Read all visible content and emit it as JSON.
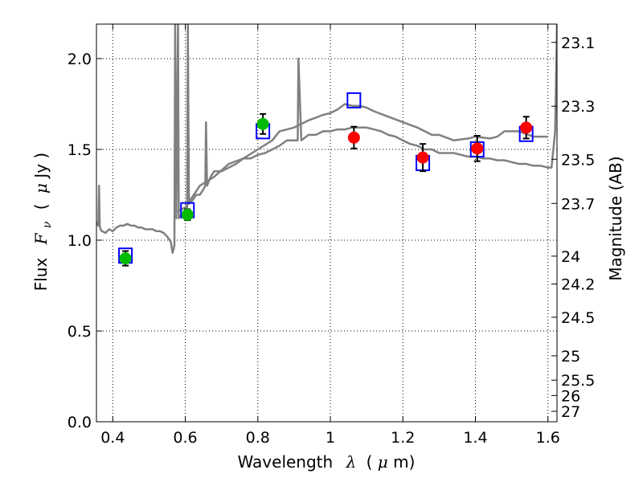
{
  "chart_data": {
    "type": "scatter",
    "xlabel": "Wavelength",
    "xlabel_symbol": "λ",
    "xlabel_unit_open": "(",
    "xlabel_unit_mu": "μ",
    "xlabel_unit_rest": "m)",
    "ylabel": "Flux",
    "ylabel_symbol": "F",
    "ylabel_subscript": "ν",
    "ylabel_unit_open": "(",
    "ylabel_unit_mu": "μ",
    "ylabel_unit_rest": "Jy )",
    "y2label": "Magnitude (AB)",
    "xlim": [
      0.355,
      1.625
    ],
    "ylim": [
      0.0,
      2.19
    ],
    "grid": true,
    "x_ticks": [
      0.4,
      0.6,
      0.8,
      1.0,
      1.2,
      1.4,
      1.6
    ],
    "x_tick_labels": [
      "0.4",
      "0.6",
      "0.8",
      "1",
      "1.2",
      "1.4",
      "1.6"
    ],
    "y_ticks": [
      0.0,
      0.5,
      1.0,
      1.5,
      2.0
    ],
    "y_tick_labels": [
      "0.0",
      "0.5",
      "1.0",
      "1.5",
      "2.0"
    ],
    "mag_ticks": [
      23.1,
      23.3,
      23.5,
      23.7,
      24,
      24.2,
      24.5,
      25,
      25.5,
      26,
      27
    ],
    "mag_tick_labels": [
      "23.1",
      "23.3",
      "23.5",
      "23.7",
      "24",
      "24.2",
      "24.5",
      "25",
      "25.5",
      "26",
      "27"
    ],
    "colors": {
      "spectrum": "#808080",
      "model": "#0000ff",
      "optical": "#00bb00",
      "nir": "#ff0000",
      "errorbar": "#000000"
    },
    "series": [
      {
        "name": "model spectrum",
        "kind": "line",
        "x": [
          0.355,
          0.36,
          0.362,
          0.364,
          0.366,
          0.37,
          0.38,
          0.39,
          0.4,
          0.41,
          0.42,
          0.43,
          0.44,
          0.45,
          0.46,
          0.47,
          0.48,
          0.49,
          0.5,
          0.51,
          0.52,
          0.53,
          0.54,
          0.55,
          0.56,
          0.565,
          0.57,
          0.572,
          0.575,
          0.58,
          0.582,
          0.584,
          0.59,
          0.6,
          0.605,
          0.607,
          0.61,
          0.62,
          0.63,
          0.64,
          0.65,
          0.655,
          0.657,
          0.66,
          0.67,
          0.68,
          0.7,
          0.72,
          0.74,
          0.76,
          0.78,
          0.8,
          0.82,
          0.84,
          0.86,
          0.88,
          0.9,
          0.91,
          0.912,
          0.92,
          0.94,
          0.96,
          0.98,
          1.0,
          1.02,
          1.04,
          1.06,
          1.08,
          1.1,
          1.12,
          1.14,
          1.16,
          1.18,
          1.2,
          1.22,
          1.24,
          1.26,
          1.28,
          1.3,
          1.32,
          1.34,
          1.36,
          1.38,
          1.4,
          1.42,
          1.44,
          1.46,
          1.48,
          1.5,
          1.52,
          1.54,
          1.56,
          1.58,
          1.6,
          1.61,
          1.62,
          1.625
        ],
        "y": [
          1.1,
          1.08,
          1.3,
          1.08,
          1.06,
          1.05,
          1.04,
          1.06,
          1.05,
          1.07,
          1.08,
          1.08,
          1.09,
          1.08,
          1.08,
          1.07,
          1.07,
          1.06,
          1.06,
          1.06,
          1.05,
          1.05,
          1.04,
          1.02,
          0.99,
          0.93,
          0.97,
          2.19,
          1.12,
          2.19,
          1.12,
          1.13,
          1.14,
          1.14,
          1.17,
          2.19,
          1.2,
          1.22,
          1.25,
          1.25,
          1.28,
          1.3,
          1.65,
          1.3,
          1.35,
          1.38,
          1.38,
          1.4,
          1.42,
          1.45,
          1.45,
          1.47,
          1.48,
          1.5,
          1.52,
          1.55,
          1.55,
          1.55,
          2.0,
          1.55,
          1.58,
          1.58,
          1.6,
          1.6,
          1.61,
          1.61,
          1.62,
          1.62,
          1.62,
          1.61,
          1.6,
          1.58,
          1.57,
          1.55,
          1.53,
          1.52,
          1.5,
          1.5,
          1.48,
          1.48,
          1.48,
          1.47,
          1.46,
          1.46,
          1.45,
          1.45,
          1.44,
          1.44,
          1.43,
          1.42,
          1.42,
          1.41,
          1.41,
          1.4,
          1.4,
          1.6,
          2.19
        ]
      },
      {
        "name": "model spectrum (upper branch)",
        "kind": "line",
        "x": [
          0.575,
          0.58,
          0.6,
          0.64,
          0.68,
          0.72,
          0.76,
          0.8,
          0.84,
          0.86,
          0.9,
          0.94,
          0.98,
          1.0,
          1.02,
          1.04,
          1.06,
          1.08,
          1.1,
          1.12,
          1.16,
          1.2,
          1.24,
          1.28,
          1.3,
          1.34,
          1.38,
          1.4,
          1.44,
          1.46,
          1.48,
          1.52,
          1.56,
          1.6
        ],
        "y": [
          1.16,
          1.16,
          1.18,
          1.3,
          1.35,
          1.42,
          1.45,
          1.5,
          1.55,
          1.6,
          1.62,
          1.66,
          1.69,
          1.7,
          1.72,
          1.75,
          1.74,
          1.74,
          1.73,
          1.71,
          1.68,
          1.65,
          1.62,
          1.58,
          1.58,
          1.55,
          1.56,
          1.57,
          1.56,
          1.57,
          1.6,
          1.6,
          1.57,
          1.57
        ]
      },
      {
        "name": "model photometry",
        "kind": "marker",
        "marker": "square-open",
        "x": [
          0.435,
          0.606,
          0.814,
          1.065,
          1.255,
          1.405,
          1.54
        ],
        "y": [
          0.915,
          1.165,
          1.6,
          1.77,
          1.425,
          1.5,
          1.585
        ]
      },
      {
        "name": "optical photometry",
        "kind": "marker",
        "marker": "circle",
        "x": [
          0.435,
          0.606,
          0.814
        ],
        "y": [
          0.9,
          1.14,
          1.64
        ],
        "yerr": [
          0.04,
          0.03,
          0.055
        ]
      },
      {
        "name": "near-IR photometry",
        "kind": "marker",
        "marker": "circle",
        "x": [
          1.065,
          1.255,
          1.405,
          1.54
        ],
        "y": [
          1.565,
          1.455,
          1.505,
          1.62
        ],
        "yerr": [
          0.06,
          0.075,
          0.07,
          0.06
        ]
      }
    ]
  }
}
